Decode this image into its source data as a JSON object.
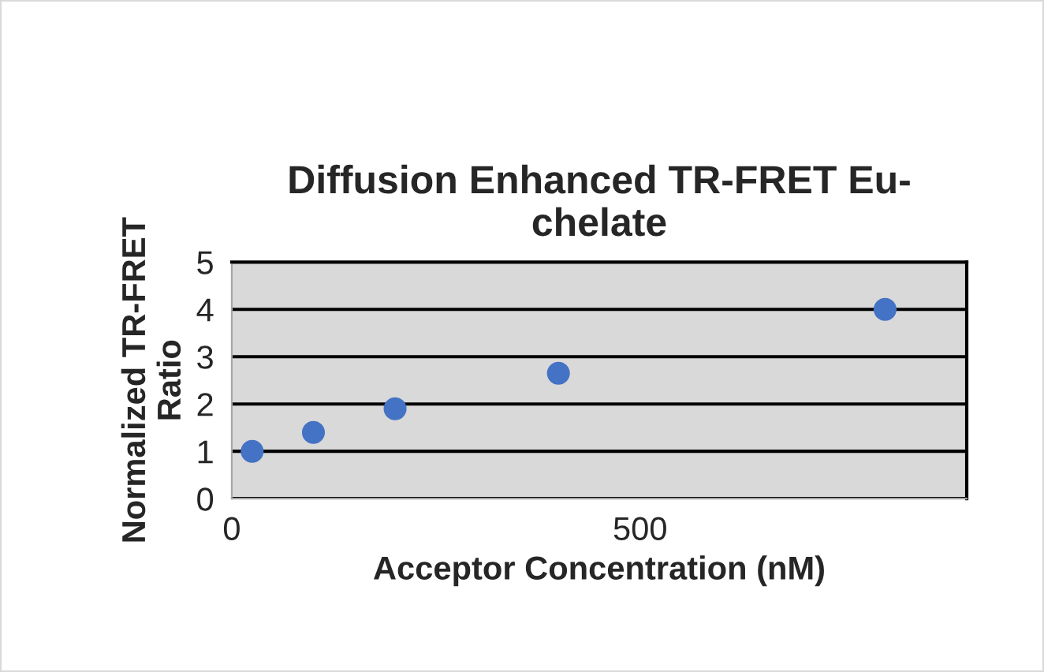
{
  "chart_data": {
    "type": "scatter",
    "title": "Diffusion Enhanced TR-FRET Eu-\nchelate",
    "xlabel": "Acceptor Concentration (nM)",
    "ylabel": "Normalized TR-FRET\nRatio",
    "x": [
      25,
      100,
      200,
      400,
      800
    ],
    "series": [
      {
        "color": "#4472c4",
        "values": [
          1.0,
          1.4,
          1.9,
          2.65,
          4.0
        ]
      }
    ],
    "xlim": [
      0,
      900
    ],
    "xticks": [
      0,
      500
    ],
    "ylim": [
      0,
      5
    ],
    "yticks": [
      0,
      1,
      2,
      3,
      4,
      5
    ],
    "grid": "y",
    "marker": "circle",
    "legend": false
  }
}
